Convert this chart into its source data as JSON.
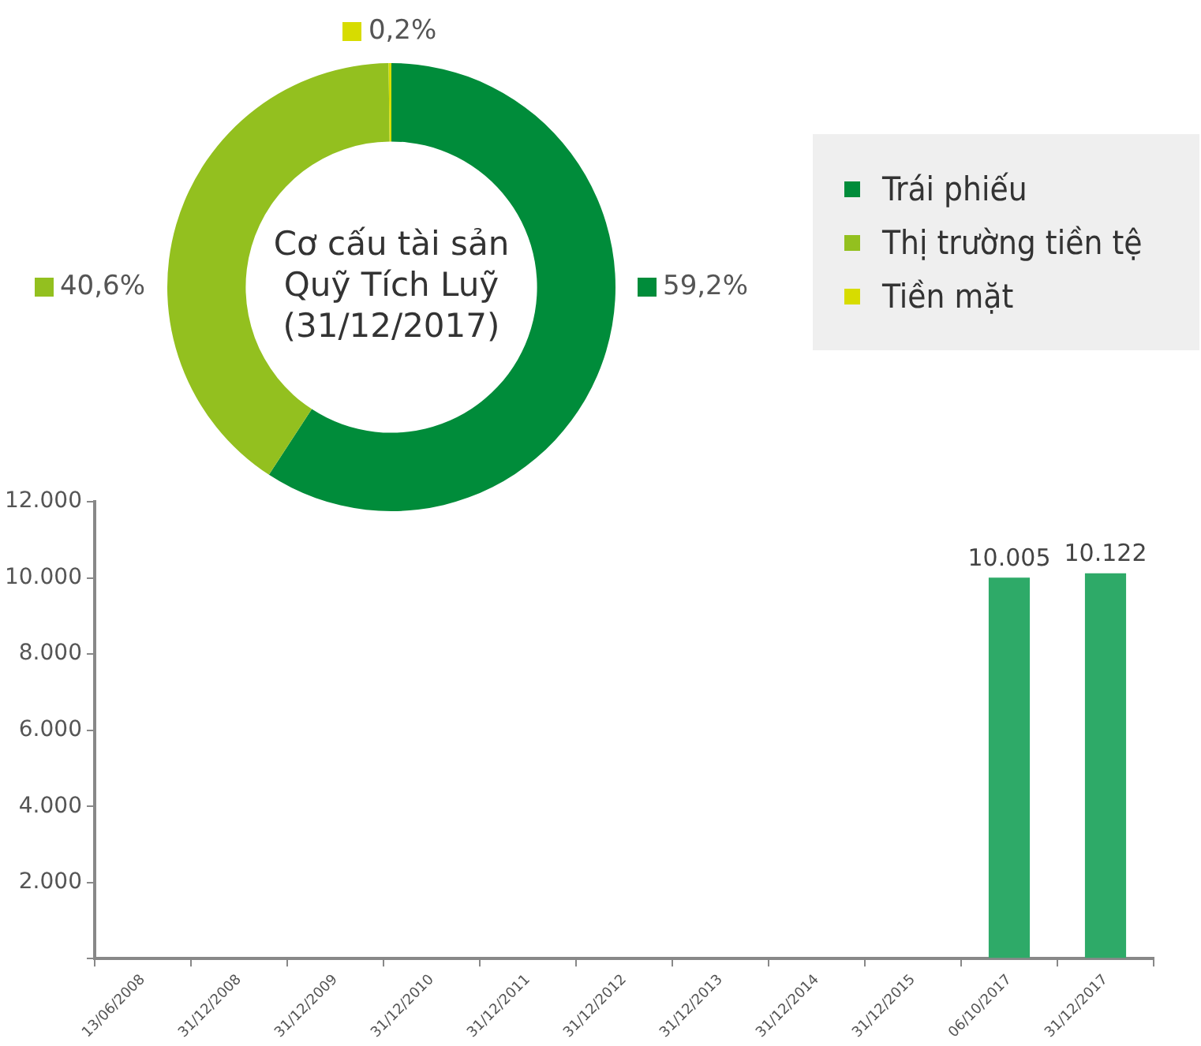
{
  "chart_data": [
    {
      "type": "donut",
      "title": "Cơ cấu tài sản\nQuỹ Tích Luỹ\n(31/12/2017)",
      "categories": [
        "Trái phiếu",
        "Thị trường tiền tệ",
        "Tiền mặt"
      ],
      "values": [
        59.2,
        40.6,
        0.2
      ],
      "colors": [
        "#008c3a",
        "#93c01f",
        "#d7dc00"
      ],
      "value_labels": [
        "59,2%",
        "40,6%",
        "0,2%"
      ],
      "legend": "right"
    },
    {
      "type": "bar",
      "categories": [
        "13/06/2008",
        "31/12/2008",
        "31/12/2009",
        "31/12/2010",
        "31/12/2011",
        "31/12/2012",
        "31/12/2013",
        "31/12/2014",
        "31/12/2015",
        "06/10/2017",
        "31/12/2017"
      ],
      "values": [
        null,
        null,
        null,
        null,
        null,
        null,
        null,
        null,
        null,
        10005,
        10122
      ],
      "color": "#2eaa68",
      "value_labels": [
        null,
        null,
        null,
        null,
        null,
        null,
        null,
        null,
        null,
        "10.005",
        "10.122"
      ],
      "ylim": [
        0,
        12000
      ],
      "yticks": [
        {
          "value": 0,
          "label": null
        },
        {
          "value": 2000,
          "label": "2.000"
        },
        {
          "value": 4000,
          "label": "4.000"
        },
        {
          "value": 6000,
          "label": "6.000"
        },
        {
          "value": 8000,
          "label": "8.000"
        },
        {
          "value": 10000,
          "label": "10.000"
        },
        {
          "value": 12000,
          "label": "12.000"
        }
      ],
      "grid": false,
      "legend": false
    }
  ]
}
